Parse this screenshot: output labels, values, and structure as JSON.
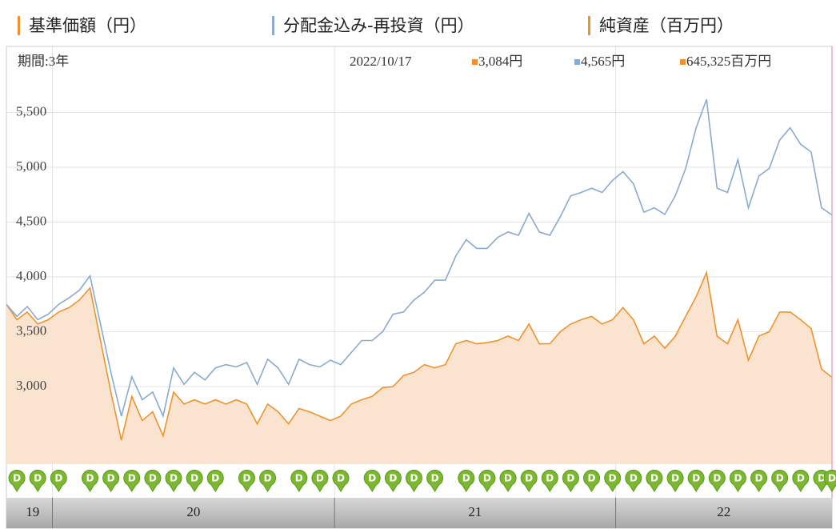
{
  "chart_data": {
    "type": "line",
    "legend": [
      "基準価額（円）",
      "分配金込み-再投資（円）",
      "純資産（百万円）"
    ],
    "legend_colors": [
      "#f0922b",
      "#8aaad0",
      "#f0922b"
    ],
    "period": "期間:3年",
    "date": "2022/10/17",
    "latest_labels": [
      "3,084円",
      "4,565円",
      "645,325百万円"
    ],
    "series": [
      {
        "name": "基準価額",
        "color": "#f0922b",
        "fill": "#fbe4cf",
        "values": [
          3750,
          3610,
          3680,
          3570,
          3610,
          3680,
          3720,
          3790,
          3900,
          3420,
          2950,
          2510,
          2910,
          2690,
          2770,
          2550,
          2950,
          2840,
          2880,
          2840,
          2880,
          2840,
          2880,
          2840,
          2660,
          2840,
          2770,
          2660,
          2800,
          2770,
          2730,
          2690,
          2730,
          2840,
          2880,
          2910,
          2990,
          3000,
          3100,
          3130,
          3200,
          3170,
          3200,
          3390,
          3420,
          3390,
          3400,
          3420,
          3460,
          3420,
          3570,
          3390,
          3390,
          3500,
          3570,
          3610,
          3640,
          3570,
          3610,
          3720,
          3610,
          3390,
          3460,
          3350,
          3460,
          3640,
          3820,
          4040,
          3460,
          3390,
          3610,
          3240,
          3460,
          3500,
          3680,
          3680,
          3610,
          3530,
          3160,
          3084
        ]
      },
      {
        "name": "分配金込み-再投資",
        "color": "#8aaad0",
        "values": [
          3750,
          3640,
          3730,
          3610,
          3660,
          3750,
          3810,
          3880,
          4010,
          3570,
          3130,
          2730,
          3090,
          2880,
          2950,
          2730,
          3170,
          3020,
          3130,
          3060,
          3170,
          3200,
          3180,
          3220,
          3020,
          3250,
          3170,
          3020,
          3250,
          3200,
          3180,
          3240,
          3200,
          3310,
          3420,
          3420,
          3500,
          3660,
          3680,
          3790,
          3860,
          3970,
          3970,
          4190,
          4340,
          4260,
          4260,
          4360,
          4410,
          4380,
          4580,
          4410,
          4380,
          4550,
          4740,
          4770,
          4810,
          4770,
          4880,
          4960,
          4850,
          4590,
          4630,
          4570,
          4740,
          4990,
          5360,
          5620,
          4810,
          4770,
          5070,
          4630,
          4920,
          4990,
          5250,
          5360,
          5210,
          5140,
          4630,
          4565
        ]
      }
    ],
    "xlim": [
      0,
      79
    ],
    "xticks": [
      {
        "value": 0,
        "label": "19"
      },
      {
        "value": 4.4,
        "label": "20"
      },
      {
        "value": 31.4,
        "label": "21"
      },
      {
        "value": 58.3,
        "label": "22"
      }
    ],
    "ylim": [
      2292,
      6088
    ],
    "yticks": [
      {
        "value": 3000,
        "label": "3,000"
      },
      {
        "value": 3500,
        "label": "3,500"
      },
      {
        "value": 4000,
        "label": "4,000"
      },
      {
        "value": 4500,
        "label": "4,500"
      },
      {
        "value": 5000,
        "label": "5,000"
      },
      {
        "value": 5500,
        "label": "5,500"
      }
    ],
    "grid": true,
    "dividends": {
      "label": "D",
      "color": "#7cb82f",
      "x": [
        1,
        3,
        5,
        8,
        10,
        12,
        14,
        16,
        18,
        20,
        23,
        25,
        28,
        30,
        32,
        35,
        37,
        39,
        41,
        44,
        46,
        48,
        50,
        52,
        54,
        56,
        58,
        60,
        62,
        64,
        66,
        68,
        70,
        72,
        74,
        76,
        78,
        79
      ]
    }
  }
}
